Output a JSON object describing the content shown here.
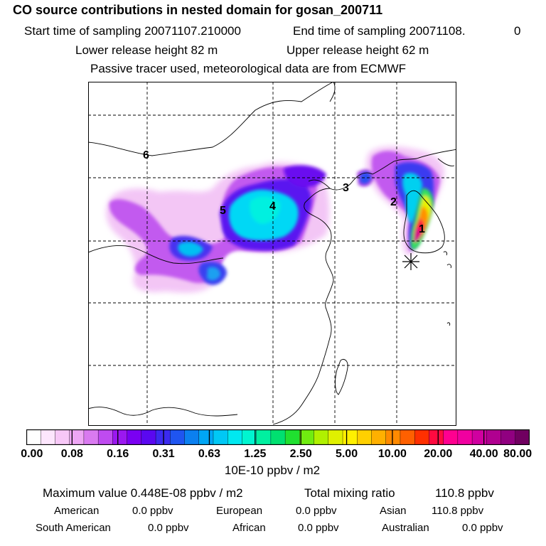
{
  "header": {
    "title": "CO  source contributions in nested domain for gosan_200711",
    "line1_left": "Start time of sampling 20071107.210000",
    "line1_right": "End time of sampling 20071108.",
    "line1_right_tail": "0",
    "line2_left": "Lower release height   82 m",
    "line2_right": "Upper release height   62 m",
    "line3": "Passive tracer used, meteorological data are from ECMWF"
  },
  "map": {
    "region_labels": [
      "1",
      "2",
      "3",
      "4",
      "5",
      "6"
    ],
    "receptor_marker": "asterisk-icon"
  },
  "colorbar": {
    "tick_labels": [
      "0.00",
      "0.08",
      "0.16",
      "0.31",
      "0.63",
      "1.25",
      "2.50",
      "5.00",
      "10.00",
      "20.00",
      "40.00",
      "80.00"
    ],
    "unit": "10E-10 ppbv / m2",
    "colors": [
      "#ffffff",
      "#fde6fd",
      "#f7c8f7",
      "#eea6f5",
      "#d97af0",
      "#bf4bf0",
      "#9b18f0",
      "#7a00f2",
      "#5a08f0",
      "#3b2af0",
      "#1f55f0",
      "#0b80f0",
      "#00a6f5",
      "#00c8f5",
      "#00e8f0",
      "#00f5d0",
      "#00f0a0",
      "#00e070",
      "#20e030",
      "#70ec10",
      "#b0f000",
      "#e0f000",
      "#fff000",
      "#ffd000",
      "#ffb000",
      "#ff8a00",
      "#ff6000",
      "#ff3000",
      "#ff0a40",
      "#ff0090",
      "#f000a0",
      "#d000a0",
      "#b00090",
      "#900080",
      "#700060"
    ]
  },
  "footer": {
    "max_label": "Maximum value  0.448E-08 ppbv / m2",
    "total_label": "Total mixing ratio",
    "total_value": "110.8 ppbv",
    "regions": [
      {
        "name": "American",
        "value": "0.0 ppbv"
      },
      {
        "name": "European",
        "value": "0.0 ppbv"
      },
      {
        "name": "Asian",
        "value": "110.8 ppbv"
      },
      {
        "name": "South American",
        "value": "0.0 ppbv"
      },
      {
        "name": "African",
        "value": "0.0 ppbv"
      },
      {
        "name": "Australian",
        "value": "0.0 ppbv"
      }
    ]
  }
}
